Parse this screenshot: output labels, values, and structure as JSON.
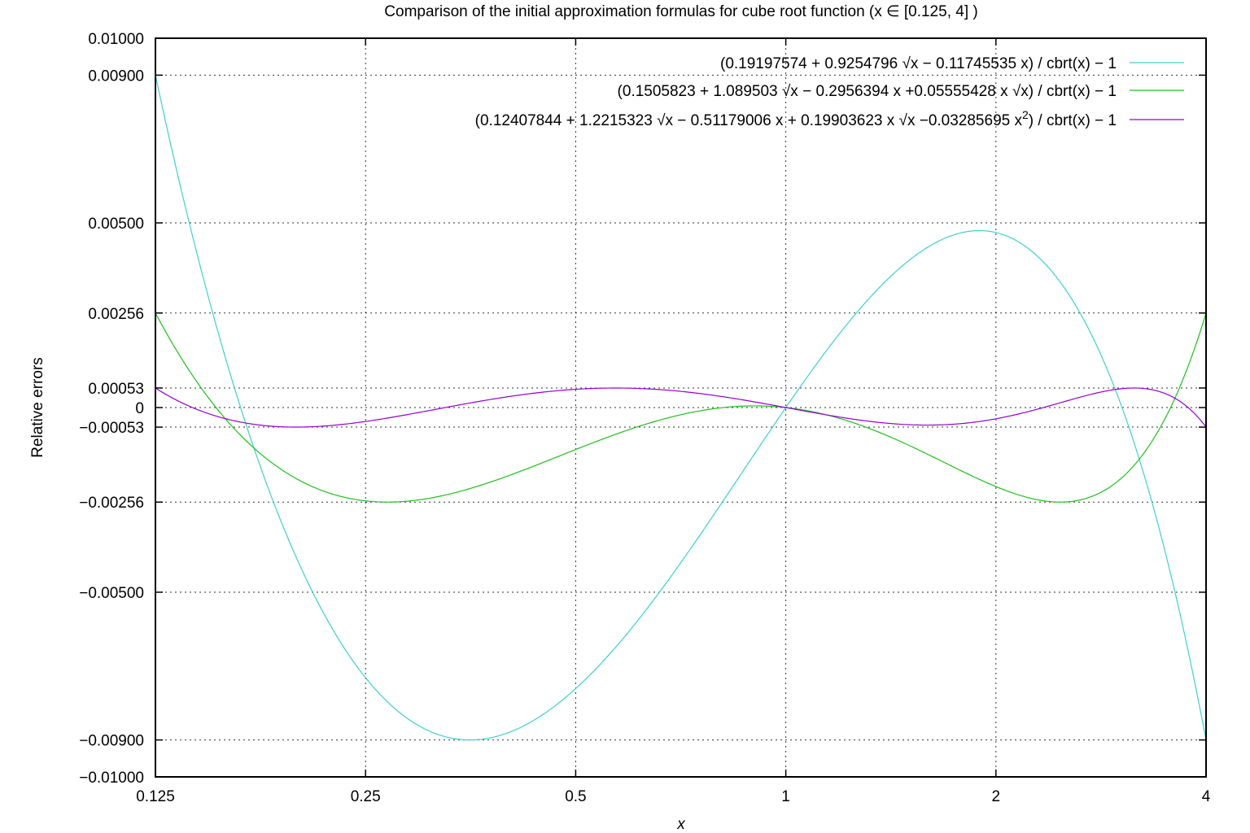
{
  "chart_data": {
    "type": "line",
    "title": "Comparison of the initial approximation formulas for cube root function (x ∈ [0.125, 4] )",
    "xlabel": "x",
    "ylabel": "Relative errors",
    "xscale": "log2",
    "xlim": [
      0.125,
      4
    ],
    "ylim": [
      -0.01,
      0.01
    ],
    "grid": true,
    "legend_position": "top-right",
    "xticks": [
      {
        "value": 0.125,
        "label": "0.125"
      },
      {
        "value": 0.25,
        "label": "0.25"
      },
      {
        "value": 0.5,
        "label": "0.5"
      },
      {
        "value": 1,
        "label": "1"
      },
      {
        "value": 2,
        "label": "2"
      },
      {
        "value": 4,
        "label": "4"
      }
    ],
    "yticks": [
      {
        "value": 0.01,
        "label": "0.01000"
      },
      {
        "value": 0.009,
        "label": "0.00900"
      },
      {
        "value": 0.005,
        "label": "0.00500"
      },
      {
        "value": 0.00256,
        "label": "0.00256"
      },
      {
        "value": 0.00053,
        "label": "0.00053"
      },
      {
        "value": 0,
        "label": "0"
      },
      {
        "value": -0.00053,
        "label": "−0.00053"
      },
      {
        "value": -0.00256,
        "label": "−0.00256"
      },
      {
        "value": -0.005,
        "label": "−0.00500"
      },
      {
        "value": -0.009,
        "label": "−0.00900"
      },
      {
        "value": -0.01,
        "label": "−0.01000"
      }
    ],
    "series": [
      {
        "name": "(0.19197574 + 0.9254796 √x − 0.11745535 x) / cbrt(x) − 1",
        "name_main": "(0.19197574 + 0.9254796 √x − 0.11745535 x) / cbrt(x) − 1",
        "name_sup": "",
        "name_tail": "",
        "color": "#3fcfcf",
        "coefficients": {
          "c0": 0.19197574,
          "sqrt": 0.9254796,
          "x": -0.11745535,
          "x_sqrt": 0,
          "x2": 0
        }
      },
      {
        "name": "(0.1505823 + 1.089503 √x − 0.2956394 x +0.05555428 x √x) / cbrt(x) − 1",
        "name_main": "(0.1505823 + 1.089503 √x − 0.2956394 x +0.05555428 x √x) / cbrt(x) − 1",
        "name_sup": "",
        "name_tail": "",
        "color": "#1fbf1f",
        "coefficients": {
          "c0": 0.1505823,
          "sqrt": 1.089503,
          "x": -0.2956394,
          "x_sqrt": 0.05555428,
          "x2": 0
        }
      },
      {
        "name": "(0.12407844 + 1.2215323 √x − 0.51179006  x + 0.19903623 x √x −0.03285695 x2) / cbrt(x) − 1",
        "name_main": "(0.12407844 + 1.2215323 √x − 0.51179006  x + 0.19903623 x √x −0.03285695 x",
        "name_sup": "2",
        "name_tail": ") / cbrt(x) − 1",
        "color": "#9400d3",
        "coefficients": {
          "c0": 0.12407844,
          "sqrt": 1.2215323,
          "x": -0.51179006,
          "x_sqrt": 0.19903623,
          "x2": -0.03285695
        }
      }
    ]
  }
}
